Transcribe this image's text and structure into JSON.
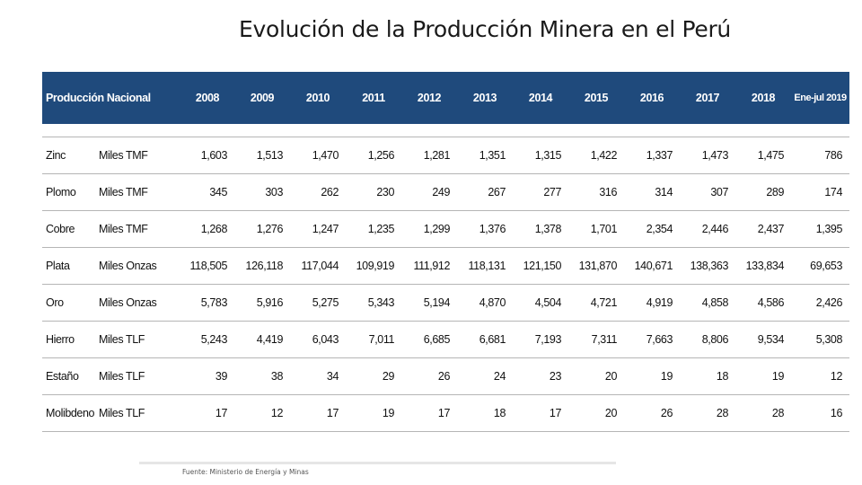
{
  "title": "Evolución de la Producción Minera en el Perú",
  "table": {
    "header": {
      "label": "Producción Nacional",
      "years": [
        "2008",
        "2009",
        "2010",
        "2011",
        "2012",
        "2013",
        "2014",
        "2015",
        "2016",
        "2017",
        "2018",
        "Ene-jul 2019"
      ]
    },
    "rows": [
      {
        "name": "Zinc",
        "unit": "Miles TMF",
        "values": [
          "1,603",
          "1,513",
          "1,470",
          "1,256",
          "1,281",
          "1,351",
          "1,315",
          "1,422",
          "1,337",
          "1,473",
          "1,475",
          "786"
        ]
      },
      {
        "name": "Plomo",
        "unit": "Miles TMF",
        "values": [
          "345",
          "303",
          "262",
          "230",
          "249",
          "267",
          "277",
          "316",
          "314",
          "307",
          "289",
          "174"
        ]
      },
      {
        "name": "Cobre",
        "unit": "Miles TMF",
        "values": [
          "1,268",
          "1,276",
          "1,247",
          "1,235",
          "1,299",
          "1,376",
          "1,378",
          "1,701",
          "2,354",
          "2,446",
          "2,437",
          "1,395"
        ]
      },
      {
        "name": "Plata",
        "unit": "Miles Onzas",
        "values": [
          "118,505",
          "126,118",
          "117,044",
          "109,919",
          "111,912",
          "118,131",
          "121,150",
          "131,870",
          "140,671",
          "138,363",
          "133,834",
          "69,653"
        ]
      },
      {
        "name": "Oro",
        "unit": "Miles Onzas",
        "values": [
          "5,783",
          "5,916",
          "5,275",
          "5,343",
          "5,194",
          "4,870",
          "4,504",
          "4,721",
          "4,919",
          "4,858",
          "4,586",
          "2,426"
        ]
      },
      {
        "name": "Hierro",
        "unit": "Miles TLF",
        "values": [
          "5,243",
          "4,419",
          "6,043",
          "7,011",
          "6,685",
          "6,681",
          "7,193",
          "7,311",
          "7,663",
          "8,806",
          "9,534",
          "5,308"
        ]
      },
      {
        "name": "Estaño",
        "unit": "Miles TLF",
        "values": [
          "39",
          "38",
          "34",
          "29",
          "26",
          "24",
          "23",
          "20",
          "19",
          "18",
          "19",
          "12"
        ]
      },
      {
        "name": "Molibdeno",
        "unit": "Miles TLF",
        "values": [
          "17",
          "12",
          "17",
          "19",
          "17",
          "18",
          "17",
          "20",
          "26",
          "28",
          "28",
          "16"
        ]
      }
    ]
  },
  "source": "Fuente: Ministerio de Energía y Minas",
  "colors": {
    "header_bg": "#1f4a7c",
    "header_text": "#ffffff"
  }
}
